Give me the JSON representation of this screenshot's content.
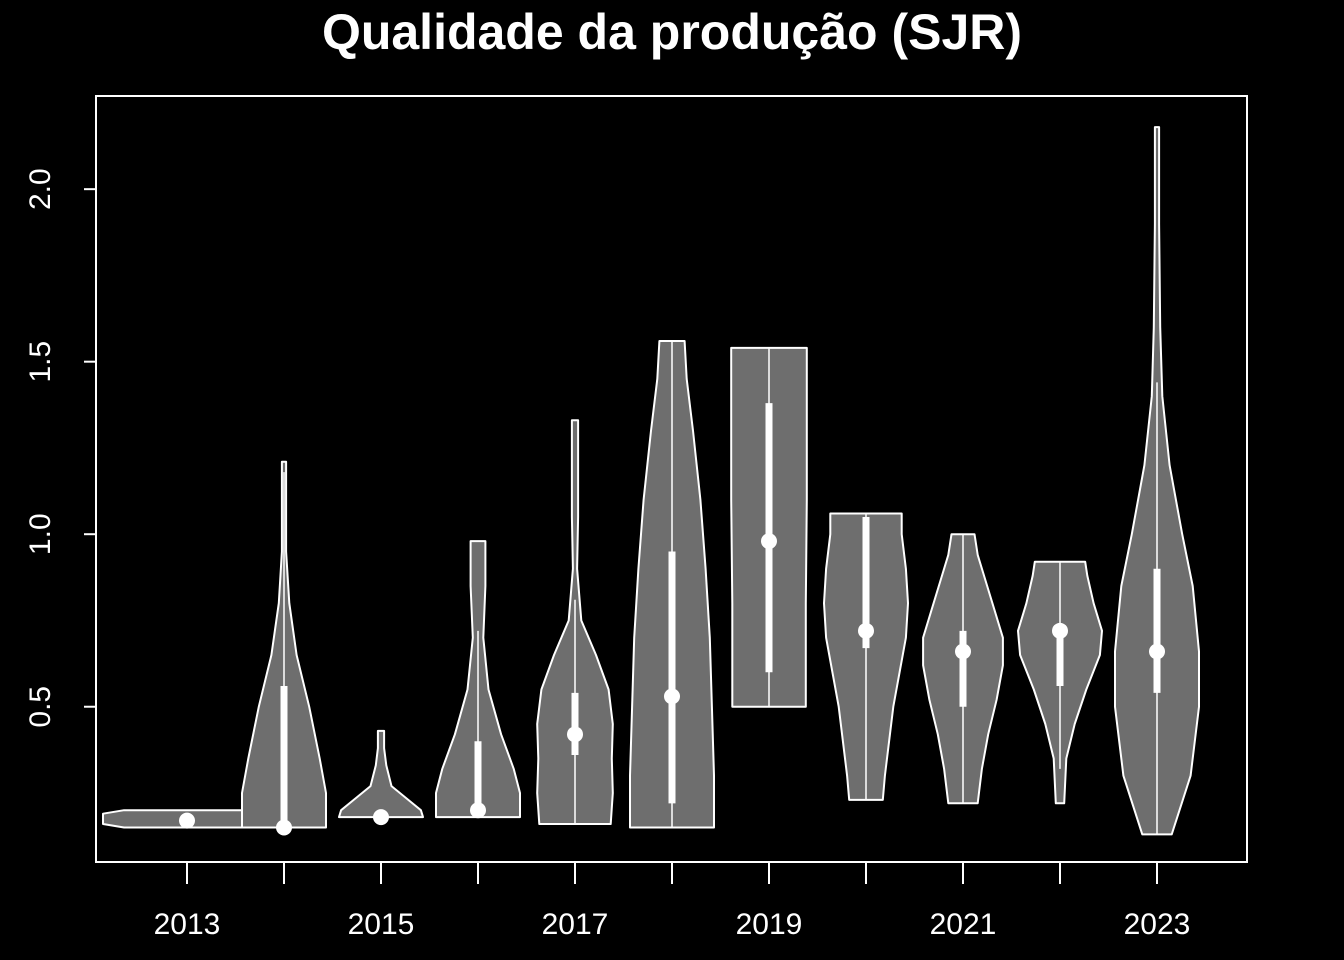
{
  "chart_data": {
    "type": "violin",
    "title": "Qualidade da produção (SJR)",
    "xlabel": "",
    "ylabel": "",
    "x_tick_labels": [
      "2013",
      "",
      "2015",
      "",
      "2017",
      "",
      "2019",
      "",
      "2021",
      "",
      "2023"
    ],
    "y_ticks": [
      0.5,
      1.0,
      1.5,
      2.0
    ],
    "y_tick_labels": [
      "0.5",
      "1.0",
      "1.5",
      "2.0"
    ],
    "ylim": [
      0.05,
      2.27
    ],
    "grid": false,
    "colors": {
      "background": "#000000",
      "violin_fill": "#6e6e6e",
      "stroke": "#ffffff"
    },
    "series": [
      {
        "year": "2013",
        "min": 0.15,
        "max": 0.2,
        "q1": 0.17,
        "q3": 0.17,
        "median": 0.17,
        "wl": 0.17,
        "wh": 0.17,
        "density": [
          [
            0.15,
            0.6
          ],
          [
            0.16,
            0.8
          ],
          [
            0.175,
            0.8
          ],
          [
            0.19,
            0.8
          ],
          [
            0.2,
            0.6
          ]
        ]
      },
      {
        "year": "2014",
        "min": 0.15,
        "max": 1.21,
        "q1": 0.15,
        "q3": 0.56,
        "median": 0.15,
        "wl": 0.15,
        "wh": 1.18,
        "density": [
          [
            0.15,
            0.4
          ],
          [
            0.25,
            0.4
          ],
          [
            0.35,
            0.34
          ],
          [
            0.5,
            0.24
          ],
          [
            0.65,
            0.12
          ],
          [
            0.8,
            0.05
          ],
          [
            0.95,
            0.02
          ],
          [
            1.1,
            0.02
          ],
          [
            1.21,
            0.02
          ]
        ]
      },
      {
        "year": "2015",
        "min": 0.18,
        "max": 0.43,
        "q1": 0.18,
        "q3": 0.18,
        "median": 0.18,
        "wl": 0.18,
        "wh": 0.18,
        "density": [
          [
            0.18,
            0.4
          ],
          [
            0.2,
            0.38
          ],
          [
            0.23,
            0.26
          ],
          [
            0.27,
            0.1
          ],
          [
            0.33,
            0.05
          ],
          [
            0.38,
            0.03
          ],
          [
            0.43,
            0.03
          ]
        ]
      },
      {
        "year": "2016",
        "min": 0.18,
        "max": 0.98,
        "q1": 0.18,
        "q3": 0.4,
        "median": 0.2,
        "wl": 0.18,
        "wh": 0.72,
        "density": [
          [
            0.18,
            0.4
          ],
          [
            0.25,
            0.4
          ],
          [
            0.32,
            0.34
          ],
          [
            0.42,
            0.22
          ],
          [
            0.55,
            0.1
          ],
          [
            0.7,
            0.05
          ],
          [
            0.85,
            0.07
          ],
          [
            0.98,
            0.07
          ]
        ]
      },
      {
        "year": "2017",
        "min": 0.16,
        "max": 1.33,
        "q1": 0.36,
        "q3": 0.54,
        "median": 0.42,
        "wl": 0.16,
        "wh": 0.81,
        "density": [
          [
            0.16,
            0.34
          ],
          [
            0.25,
            0.36
          ],
          [
            0.35,
            0.35
          ],
          [
            0.45,
            0.36
          ],
          [
            0.55,
            0.32
          ],
          [
            0.65,
            0.2
          ],
          [
            0.75,
            0.06
          ],
          [
            0.9,
            0.02
          ],
          [
            1.05,
            0.03
          ],
          [
            1.2,
            0.03
          ],
          [
            1.33,
            0.03
          ]
        ]
      },
      {
        "year": "2018",
        "min": 0.15,
        "max": 1.56,
        "q1": 0.22,
        "q3": 0.95,
        "median": 0.53,
        "wl": 0.15,
        "wh": 1.56,
        "density": [
          [
            0.15,
            0.4
          ],
          [
            0.3,
            0.4
          ],
          [
            0.5,
            0.38
          ],
          [
            0.7,
            0.36
          ],
          [
            0.9,
            0.32
          ],
          [
            1.1,
            0.27
          ],
          [
            1.3,
            0.2
          ],
          [
            1.45,
            0.14
          ],
          [
            1.56,
            0.12
          ]
        ]
      },
      {
        "year": "2019",
        "min": 0.5,
        "max": 1.54,
        "q1": 0.6,
        "q3": 1.38,
        "median": 0.98,
        "wl": 0.5,
        "wh": 1.54,
        "density": [
          [
            0.5,
            0.35
          ],
          [
            0.8,
            0.35
          ],
          [
            1.1,
            0.36
          ],
          [
            1.4,
            0.36
          ],
          [
            1.54,
            0.36
          ]
        ]
      },
      {
        "year": "2020",
        "min": 0.23,
        "max": 1.06,
        "q1": 0.67,
        "q3": 1.05,
        "median": 0.72,
        "wl": 0.23,
        "wh": 1.06,
        "density": [
          [
            0.23,
            0.16
          ],
          [
            0.3,
            0.18
          ],
          [
            0.4,
            0.22
          ],
          [
            0.5,
            0.26
          ],
          [
            0.6,
            0.32
          ],
          [
            0.7,
            0.38
          ],
          [
            0.8,
            0.4
          ],
          [
            0.9,
            0.38
          ],
          [
            1.0,
            0.34
          ],
          [
            1.06,
            0.34
          ]
        ]
      },
      {
        "year": "2021",
        "min": 0.22,
        "max": 1.0,
        "q1": 0.5,
        "q3": 0.72,
        "median": 0.66,
        "wl": 0.22,
        "wh": 1.0,
        "density": [
          [
            0.22,
            0.14
          ],
          [
            0.32,
            0.18
          ],
          [
            0.42,
            0.24
          ],
          [
            0.52,
            0.32
          ],
          [
            0.62,
            0.38
          ],
          [
            0.7,
            0.38
          ],
          [
            0.78,
            0.3
          ],
          [
            0.86,
            0.22
          ],
          [
            0.94,
            0.14
          ],
          [
            1.0,
            0.11
          ]
        ]
      },
      {
        "year": "2022",
        "min": 0.22,
        "max": 0.92,
        "q1": 0.56,
        "q3": 0.72,
        "median": 0.72,
        "wl": 0.32,
        "wh": 0.92,
        "density": [
          [
            0.22,
            0.04
          ],
          [
            0.35,
            0.06
          ],
          [
            0.45,
            0.14
          ],
          [
            0.55,
            0.25
          ],
          [
            0.65,
            0.38
          ],
          [
            0.72,
            0.4
          ],
          [
            0.8,
            0.32
          ],
          [
            0.88,
            0.26
          ],
          [
            0.92,
            0.24
          ]
        ]
      },
      {
        "year": "2023",
        "min": 0.13,
        "max": 2.18,
        "q1": 0.54,
        "q3": 0.9,
        "median": 0.66,
        "wl": 0.13,
        "wh": 1.44,
        "density": [
          [
            0.13,
            0.14
          ],
          [
            0.3,
            0.32
          ],
          [
            0.5,
            0.4
          ],
          [
            0.66,
            0.4
          ],
          [
            0.85,
            0.34
          ],
          [
            1.0,
            0.24
          ],
          [
            1.2,
            0.12
          ],
          [
            1.4,
            0.05
          ],
          [
            1.6,
            0.03
          ],
          [
            1.9,
            0.02
          ],
          [
            2.18,
            0.02
          ]
        ]
      }
    ]
  }
}
